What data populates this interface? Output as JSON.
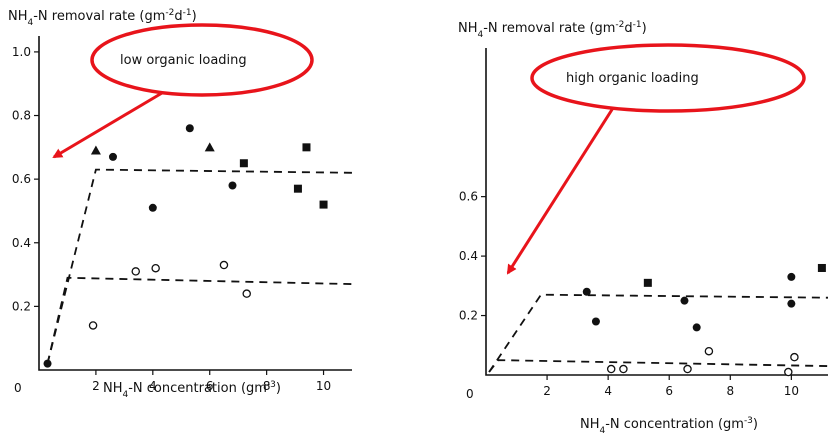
{
  "chart_data": [
    {
      "type": "scatter",
      "ylabel_prefix": "NH",
      "ylabel_sub": "4",
      "ylabel_rest": "-N removal rate (gm",
      "ylabel_sup": "-2",
      "ylabel_mid": "d",
      "ylabel_sup2": "-1",
      "ylabel_end": ")",
      "xlabel_prefix": "NH",
      "xlabel_sub": "4",
      "xlabel_rest": "-N concentration (gm",
      "xlabel_sup": "-3",
      "xlabel_end": ")",
      "annotation": "low organic loading",
      "origin_label": "0",
      "xlim": [
        0,
        11
      ],
      "ylim": [
        0,
        1.05
      ],
      "x_ticks": [
        2,
        4,
        6,
        8,
        10
      ],
      "x_tick_labels": [
        "2",
        "4",
        "6",
        "8",
        "10"
      ],
      "y_ticks": [
        0.2,
        0.4,
        0.6,
        0.8,
        1.0
      ],
      "y_tick_labels": [
        "0.2",
        "0.4",
        "0.6",
        "0.8",
        "1.0"
      ],
      "series": [
        {
          "marker": "circle-filled",
          "points": [
            [
              0.3,
              0.02
            ],
            [
              2.6,
              0.67
            ],
            [
              4.0,
              0.51
            ],
            [
              5.3,
              0.76
            ],
            [
              6.8,
              0.58
            ]
          ]
        },
        {
          "marker": "triangle-filled",
          "points": [
            [
              2.0,
              0.69
            ],
            [
              6.0,
              0.7
            ]
          ]
        },
        {
          "marker": "square-filled",
          "points": [
            [
              7.2,
              0.65
            ],
            [
              9.1,
              0.57
            ],
            [
              9.4,
              0.7
            ],
            [
              10.0,
              0.52
            ]
          ]
        },
        {
          "marker": "circle-open",
          "points": [
            [
              1.9,
              0.14
            ],
            [
              3.4,
              0.31
            ],
            [
              4.1,
              0.32
            ],
            [
              6.5,
              0.33
            ],
            [
              7.3,
              0.24
            ]
          ]
        }
      ],
      "fitted_lines": [
        {
          "style": "dashed",
          "points": [
            [
              0.3,
              0.02
            ],
            [
              2.0,
              0.63
            ],
            [
              11.0,
              0.62
            ]
          ]
        },
        {
          "style": "dashed",
          "points": [
            [
              0.3,
              0.02
            ],
            [
              1.0,
              0.29
            ],
            [
              11.0,
              0.27
            ]
          ]
        }
      ]
    },
    {
      "type": "scatter",
      "ylabel_prefix": "NH",
      "ylabel_sub": "4",
      "ylabel_rest": "-N removal rate (gm",
      "ylabel_sup": "-2",
      "ylabel_mid": "d",
      "ylabel_sup2": "-1",
      "ylabel_end": ")",
      "xlabel_prefix": "NH",
      "xlabel_sub": "4",
      "xlabel_rest": "-N concentration (gm",
      "xlabel_sup": "-3",
      "xlabel_end": ")",
      "annotation": "high organic loading",
      "origin_label": "0",
      "xlim": [
        0,
        11.2
      ],
      "ylim": [
        0,
        1.1
      ],
      "x_ticks": [
        2,
        4,
        6,
        8,
        10
      ],
      "x_tick_labels": [
        "2",
        "4",
        "6",
        "8",
        "10"
      ],
      "y_ticks": [
        0.2,
        0.4,
        0.6
      ],
      "y_tick_labels": [
        "0.2",
        "0.4",
        "0.6"
      ],
      "series": [
        {
          "marker": "circle-filled",
          "points": [
            [
              3.3,
              0.28
            ],
            [
              3.6,
              0.18
            ],
            [
              6.5,
              0.25
            ],
            [
              6.9,
              0.16
            ],
            [
              10.0,
              0.33
            ],
            [
              10.0,
              0.24
            ]
          ]
        },
        {
          "marker": "square-filled",
          "points": [
            [
              5.3,
              0.31
            ],
            [
              11.0,
              0.36
            ]
          ]
        },
        {
          "marker": "circle-open",
          "points": [
            [
              4.1,
              0.02
            ],
            [
              4.5,
              0.02
            ],
            [
              6.6,
              0.02
            ],
            [
              7.3,
              0.08
            ],
            [
              9.9,
              0.01
            ],
            [
              10.1,
              0.06
            ]
          ]
        }
      ],
      "fitted_lines": [
        {
          "style": "dashed",
          "points": [
            [
              0.1,
              0.01
            ],
            [
              1.8,
              0.27
            ],
            [
              11.2,
              0.26
            ]
          ]
        },
        {
          "style": "dashed",
          "points": [
            [
              0.1,
              0.01
            ],
            [
              0.4,
              0.05
            ],
            [
              11.2,
              0.03
            ]
          ]
        }
      ]
    }
  ],
  "style": {
    "callout_color": "#e8141b",
    "ink_color": "#111111",
    "background": "#ffffff"
  }
}
